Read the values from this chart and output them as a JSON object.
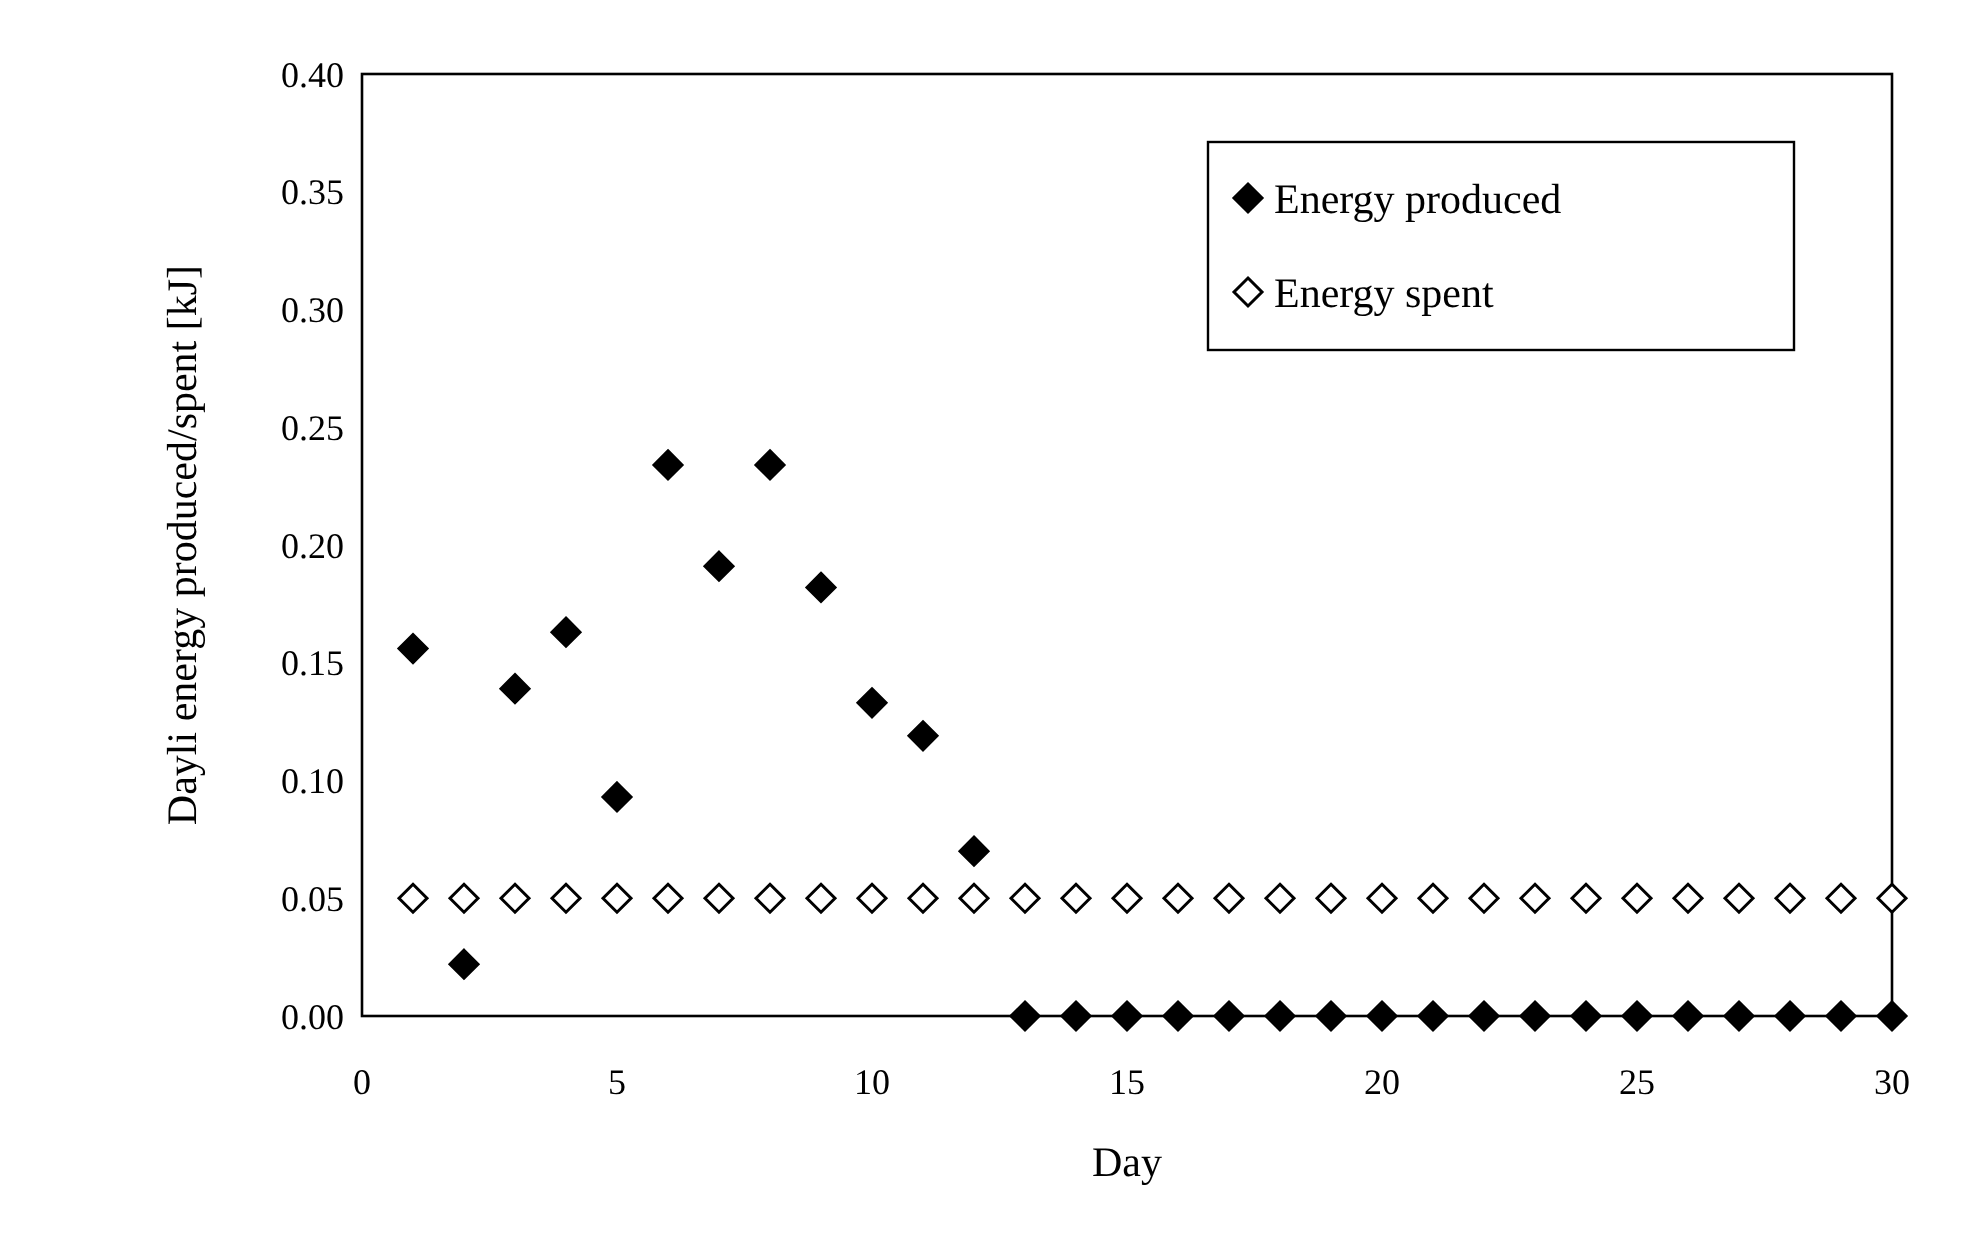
{
  "chart_data": {
    "type": "scatter",
    "xlabel": "Day",
    "ylabel": "Dayli energy produced/spent [kJ]",
    "x": [
      1,
      2,
      3,
      4,
      5,
      6,
      7,
      8,
      9,
      10,
      11,
      12,
      13,
      14,
      15,
      16,
      17,
      18,
      19,
      20,
      21,
      22,
      23,
      24,
      25,
      26,
      27,
      28,
      29,
      30
    ],
    "series": [
      {
        "name": "Energy produced",
        "color": "#000000",
        "values": [
          0.156,
          0.022,
          0.139,
          0.163,
          0.093,
          0.234,
          0.191,
          0.234,
          0.182,
          0.133,
          0.119,
          0.07,
          0,
          0,
          0,
          0,
          0,
          0,
          0,
          0,
          0,
          0,
          0,
          0,
          0,
          0,
          0,
          0,
          0,
          0
        ]
      },
      {
        "name": "Energy spent",
        "color": "#ffffff",
        "values": [
          0.05,
          0.05,
          0.05,
          0.05,
          0.05,
          0.05,
          0.05,
          0.05,
          0.05,
          0.05,
          0.05,
          0.05,
          0.05,
          0.05,
          0.05,
          0.05,
          0.05,
          0.05,
          0.05,
          0.05,
          0.05,
          0.05,
          0.05,
          0.05,
          0.05,
          0.05,
          0.05,
          0.05,
          0.05,
          0.05
        ]
      }
    ],
    "xlim": [
      0,
      30
    ],
    "xticks": [
      0,
      5,
      10,
      15,
      20,
      25,
      30
    ],
    "ylim": [
      0,
      0.4
    ],
    "yticks": [
      {
        "value": 0,
        "label": "0.00"
      },
      {
        "value": 0.05,
        "label": "0.05"
      },
      {
        "value": 0.1,
        "label": "0.10"
      },
      {
        "value": 0.15,
        "label": "0.15"
      },
      {
        "value": 0.2,
        "label": "0.20"
      },
      {
        "value": 0.25,
        "label": "0.25"
      },
      {
        "value": 0.3,
        "label": "0.30"
      },
      {
        "value": 0.35,
        "label": "0.35"
      },
      {
        "value": 0.4,
        "label": "0.40"
      }
    ],
    "grid": false,
    "legend": "top right",
    "marker": "diamond"
  }
}
